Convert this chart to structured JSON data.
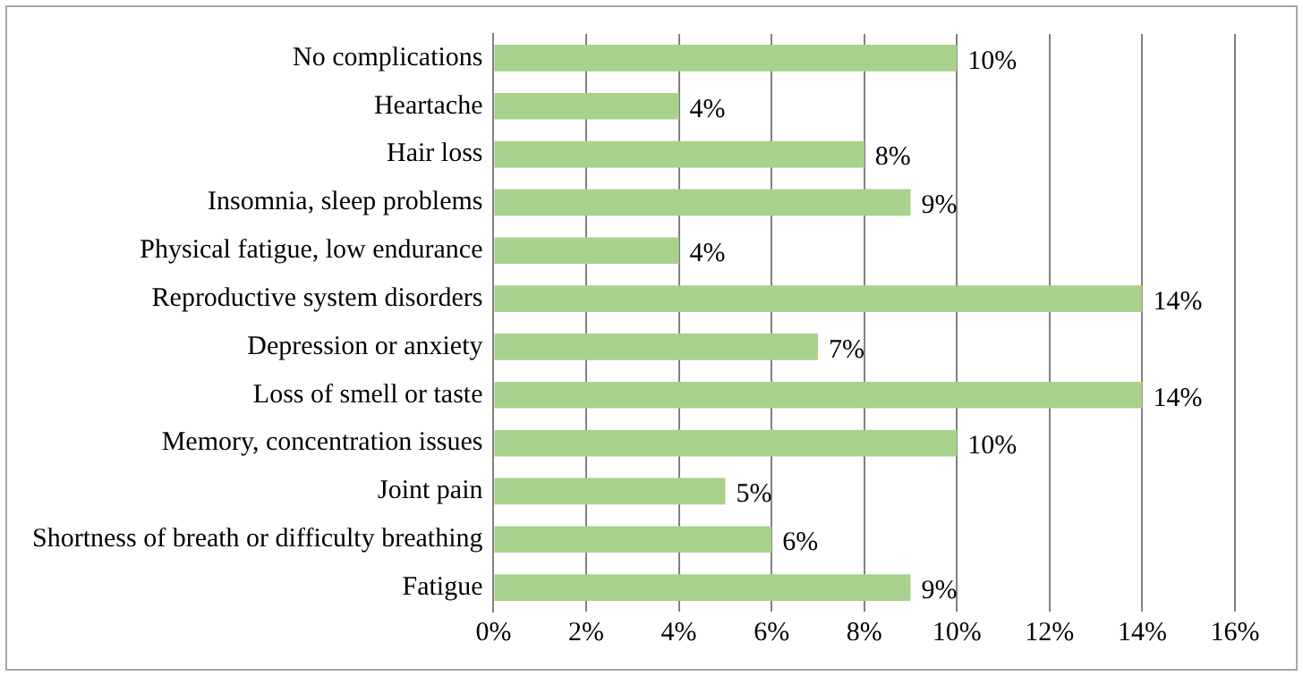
{
  "chart_data": {
    "type": "bar",
    "orientation": "horizontal",
    "categories": [
      "No complications",
      "Heartache",
      "Hair loss",
      "Insomnia, sleep problems",
      "Physical fatigue, low endurance",
      "Reproductive system disorders",
      "Depression or anxiety",
      "Loss of smell or taste",
      "Memory, concentration issues",
      "Joint pain",
      "Shortness of breath or difficulty breathing",
      "Fatigue"
    ],
    "values": [
      10,
      4,
      8,
      9,
      4,
      14,
      7,
      14,
      10,
      5,
      6,
      9
    ],
    "value_labels": [
      "10%",
      "4%",
      "8%",
      "9%",
      "4%",
      "14%",
      "7%",
      "14%",
      "10%",
      "5%",
      "6%",
      "9%"
    ],
    "color": "#a9d18e",
    "xlim": [
      0,
      16
    ],
    "xticks": [
      {
        "value": 0,
        "label": "0%"
      },
      {
        "value": 2,
        "label": "2%"
      },
      {
        "value": 4,
        "label": "4%"
      },
      {
        "value": 6,
        "label": "6%"
      },
      {
        "value": 8,
        "label": "8%"
      },
      {
        "value": 10,
        "label": "10%"
      },
      {
        "value": 12,
        "label": "12%"
      },
      {
        "value": 14,
        "label": "14%"
      },
      {
        "value": 16,
        "label": "16%"
      }
    ],
    "grid": "x",
    "legend": false
  }
}
